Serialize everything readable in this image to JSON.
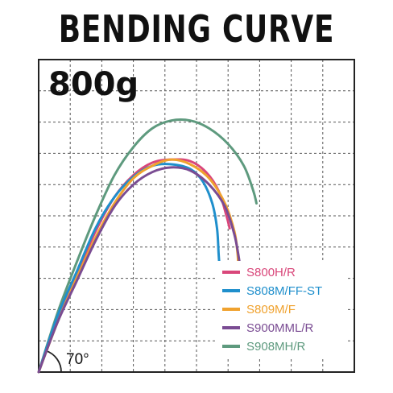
{
  "title": "BENDING CURVE",
  "chart_data": {
    "type": "line",
    "load_label": "800g",
    "angle_label": "70°",
    "xlim": [
      0,
      10
    ],
    "ylim": [
      0,
      10
    ],
    "grid": true,
    "legend_placement": "bottom-right",
    "series": [
      {
        "name": "S800H/R",
        "color": "#d9477a",
        "points": [
          [
            0,
            0
          ],
          [
            0.6,
            1.7
          ],
          [
            1.2,
            3.1
          ],
          [
            1.8,
            4.5
          ],
          [
            2.4,
            5.6
          ],
          [
            3.0,
            6.3
          ],
          [
            3.6,
            6.7
          ],
          [
            4.2,
            6.8
          ],
          [
            4.8,
            6.75
          ],
          [
            5.3,
            6.4
          ],
          [
            5.7,
            5.8
          ],
          [
            5.95,
            5.0
          ],
          [
            6.05,
            4.6
          ]
        ]
      },
      {
        "name": "S808M/FF-ST",
        "color": "#1f8fcc",
        "points": [
          [
            0,
            0
          ],
          [
            0.6,
            1.8
          ],
          [
            1.2,
            3.2
          ],
          [
            1.8,
            4.6
          ],
          [
            2.4,
            5.6
          ],
          [
            3.0,
            6.25
          ],
          [
            3.6,
            6.6
          ],
          [
            4.2,
            6.65
          ],
          [
            4.8,
            6.5
          ],
          [
            5.2,
            6.1
          ],
          [
            5.5,
            5.4
          ],
          [
            5.65,
            4.6
          ],
          [
            5.7,
            3.8
          ],
          [
            5.72,
            3.5
          ]
        ]
      },
      {
        "name": "S809M/F",
        "color": "#f0a22e",
        "points": [
          [
            0,
            0
          ],
          [
            0.6,
            1.6
          ],
          [
            1.2,
            3.0
          ],
          [
            1.8,
            4.3
          ],
          [
            2.4,
            5.4
          ],
          [
            3.0,
            6.2
          ],
          [
            3.6,
            6.6
          ],
          [
            4.2,
            6.8
          ],
          [
            4.8,
            6.65
          ],
          [
            5.4,
            6.2
          ],
          [
            5.9,
            5.4
          ],
          [
            6.2,
            4.5
          ],
          [
            6.3,
            3.8
          ],
          [
            6.32,
            3.4
          ]
        ]
      },
      {
        "name": "S900MML/R",
        "color": "#7a4c93",
        "points": [
          [
            0,
            0
          ],
          [
            0.6,
            1.6
          ],
          [
            1.2,
            2.9
          ],
          [
            1.8,
            4.2
          ],
          [
            2.4,
            5.3
          ],
          [
            3.0,
            6.0
          ],
          [
            3.6,
            6.4
          ],
          [
            4.2,
            6.55
          ],
          [
            4.8,
            6.45
          ],
          [
            5.4,
            6.0
          ],
          [
            5.9,
            5.3
          ],
          [
            6.2,
            4.4
          ],
          [
            6.35,
            3.6
          ],
          [
            6.4,
            3.2
          ]
        ]
      },
      {
        "name": "S908MH/R",
        "color": "#5e9a7e",
        "points": [
          [
            0,
            0
          ],
          [
            0.6,
            1.9
          ],
          [
            1.2,
            3.5
          ],
          [
            1.8,
            5.0
          ],
          [
            2.4,
            6.3
          ],
          [
            3.0,
            7.2
          ],
          [
            3.6,
            7.8
          ],
          [
            4.2,
            8.05
          ],
          [
            4.8,
            8.05
          ],
          [
            5.4,
            7.8
          ],
          [
            6.0,
            7.3
          ],
          [
            6.5,
            6.6
          ],
          [
            6.8,
            5.8
          ],
          [
            6.9,
            5.4
          ]
        ]
      }
    ]
  }
}
